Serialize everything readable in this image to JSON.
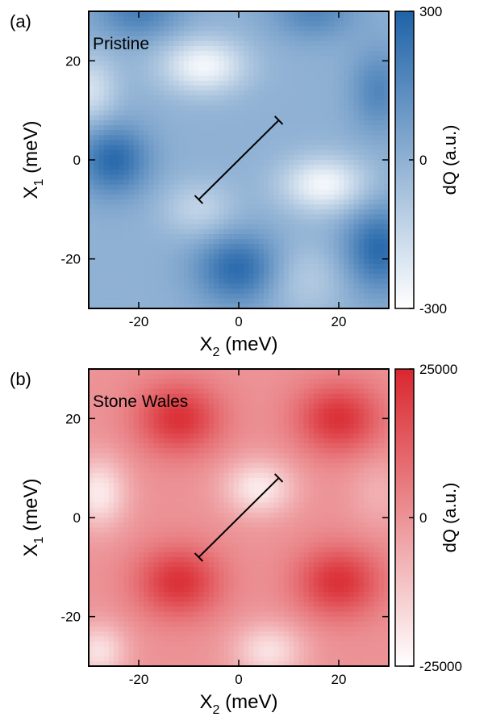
{
  "chart_data": [
    {
      "type": "heatmap",
      "panel_label": "(a)",
      "annotation": "Pristine",
      "xlabel_main": "X",
      "xlabel_sub": "2",
      "xlabel_unit": " (meV)",
      "ylabel_main": "X",
      "ylabel_sub": "1",
      "ylabel_unit": " (meV)",
      "xlim": [
        -30,
        30
      ],
      "ylim": [
        -30,
        30
      ],
      "x_ticks": [
        {
          "v": -20,
          "label": "-20"
        },
        {
          "v": 0,
          "label": "0"
        },
        {
          "v": 20,
          "label": "20"
        }
      ],
      "y_ticks": [
        {
          "v": 20,
          "label": "20"
        },
        {
          "v": 0,
          "label": "0"
        },
        {
          "v": -20,
          "label": "-20"
        }
      ],
      "colorbar": {
        "label": "dQ (a.u.)",
        "min": -300,
        "max": 300,
        "ticks": [
          {
            "v": 300,
            "label": "300"
          },
          {
            "v": 0,
            "label": "0"
          },
          {
            "v": -300,
            "label": "-300"
          }
        ],
        "colors": [
          "#ffffff",
          "#1f63a8"
        ]
      },
      "blobs": [
        {
          "x": 0,
          "y": -22,
          "amp": 1.0,
          "sx": 6,
          "sy": 5
        },
        {
          "x": -25,
          "y": 0,
          "amp": 1.0,
          "sx": 5,
          "sy": 5
        },
        {
          "x": 28,
          "y": -18,
          "amp": 1.0,
          "sx": 5,
          "sy": 6
        },
        {
          "x": 28,
          "y": 14,
          "amp": 0.6,
          "sx": 4,
          "sy": 6
        },
        {
          "x": -20,
          "y": 30,
          "amp": 0.7,
          "sx": 6,
          "sy": 4
        },
        {
          "x": 15,
          "y": 30,
          "amp": 0.6,
          "sx": 6,
          "sy": 4
        },
        {
          "x": -7,
          "y": 19,
          "amp": -1.0,
          "sx": 6,
          "sy": 4
        },
        {
          "x": 17,
          "y": -5,
          "amp": -1.0,
          "sx": 6,
          "sy": 4
        },
        {
          "x": -30,
          "y": 14,
          "amp": -0.7,
          "sx": 4,
          "sy": 5
        },
        {
          "x": -8,
          "y": -10,
          "amp": -0.5,
          "sx": 5,
          "sy": 4
        },
        {
          "x": 13,
          "y": -24,
          "amp": -0.4,
          "sx": 6,
          "sy": 5
        }
      ],
      "line": {
        "x1": -8,
        "y1": -8,
        "x2": 8,
        "y2": 8
      }
    },
    {
      "type": "heatmap",
      "panel_label": "(b)",
      "annotation": "Stone Wales",
      "xlabel_main": "X",
      "xlabel_sub": "2",
      "xlabel_unit": " (meV)",
      "ylabel_main": "X",
      "ylabel_sub": "1",
      "ylabel_unit": " (meV)",
      "xlim": [
        -30,
        30
      ],
      "ylim": [
        -30,
        30
      ],
      "x_ticks": [
        {
          "v": -20,
          "label": "-20"
        },
        {
          "v": 0,
          "label": "0"
        },
        {
          "v": 20,
          "label": "20"
        }
      ],
      "y_ticks": [
        {
          "v": 20,
          "label": "20"
        },
        {
          "v": 0,
          "label": "0"
        },
        {
          "v": -20,
          "label": "-20"
        }
      ],
      "colorbar": {
        "label": "dQ (a.u.)",
        "min": -25000,
        "max": 25000,
        "ticks": [
          {
            "v": 25000,
            "label": "25000"
          },
          {
            "v": 0,
            "label": "0"
          },
          {
            "v": -25000,
            "label": "-25000"
          }
        ],
        "colors": [
          "#ffffff",
          "#d9272e"
        ]
      },
      "blobs": [
        {
          "x": -12,
          "y": 20,
          "amp": 1.0,
          "sx": 6,
          "sy": 5
        },
        {
          "x": 20,
          "y": 20,
          "amp": 1.0,
          "sx": 6,
          "sy": 5
        },
        {
          "x": -12,
          "y": -13,
          "amp": 1.0,
          "sx": 6,
          "sy": 5
        },
        {
          "x": 20,
          "y": -13,
          "amp": 1.0,
          "sx": 6,
          "sy": 5
        },
        {
          "x": -28,
          "y": 5,
          "amp": -0.9,
          "sx": 4,
          "sy": 5
        },
        {
          "x": 4,
          "y": 6,
          "amp": -0.9,
          "sx": 5,
          "sy": 4
        },
        {
          "x": -28,
          "y": -27,
          "amp": -0.8,
          "sx": 4,
          "sy": 4
        },
        {
          "x": 6,
          "y": -27,
          "amp": -0.8,
          "sx": 5,
          "sy": 4
        },
        {
          "x": 28,
          "y": 5,
          "amp": -0.3,
          "sx": 4,
          "sy": 5
        }
      ],
      "line": {
        "x1": -8,
        "y1": -8,
        "x2": 8,
        "y2": 8
      }
    }
  ]
}
